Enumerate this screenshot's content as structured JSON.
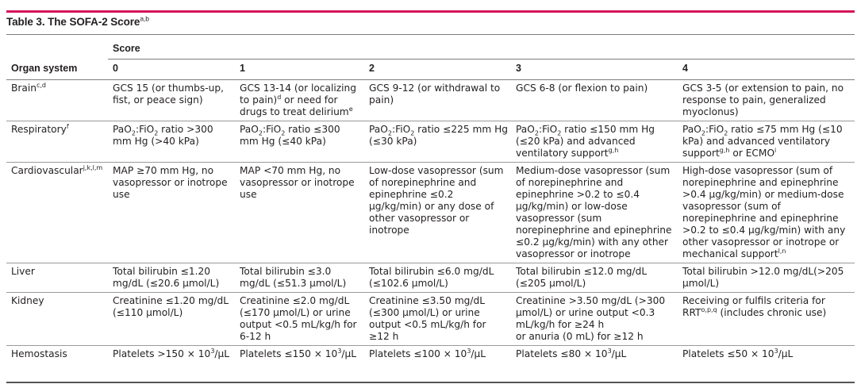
{
  "table": {
    "title": "Table 3. The SOFA-2 Score",
    "title_superscript": "a,b",
    "score_header": "Score",
    "organ_header": "Organ system",
    "score_columns": [
      "0",
      "1",
      "2",
      "3",
      "4"
    ],
    "rows": [
      {
        "organ": "Brain",
        "organ_sup": "c,d",
        "cells": [
          "GCS 15 (or thumbs-up, fist, or peace sign)",
          "GCS 13-14 (or localizing to pain)|d| or need for drugs to treat delirium|e|",
          "GCS 9-12 (or withdrawal to pain)",
          "GCS 6-8 (or flexion to pain)",
          "GCS 3-5 (or extension to pain, no response to pain, generalized myoclonus)"
        ]
      },
      {
        "organ": "Respiratory",
        "organ_sup": "f",
        "cells": [
          "PaO~2~:FiO~2~ ratio >300 mm Hg (>40 kPa)",
          "PaO~2~:FiO~2~ ratio ≤300 mm Hg (≤40 kPa)",
          "PaO~2~:FiO~2~ ratio ≤225 mm Hg (≤30 kPa)",
          "PaO~2~:FiO~2~ ratio ≤150 mm Hg (≤20 kPa) and advanced ventilatory support|g,h|",
          "PaO~2~:FiO~2~ ratio ≤75 mm Hg (≤10 kPa) and advanced ventilatory support|g,h| or ECMO|i|"
        ]
      },
      {
        "organ": "Cardiovascular",
        "organ_sup": "j,k,l,m",
        "cells": [
          "MAP ≥70 mm Hg, no vasopressor or inotrope use",
          "MAP <70 mm Hg, no vasopressor or inotrope use",
          "Low-dose vasopressor (sum of norepinephrine and epinephrine ≤0.2 μg/kg/min) or any dose of other vasopressor or inotrope",
          "Medium-dose vasopressor (sum of norepinephrine and epinephrine >0.2 to ≤0.4 μg/kg/min) or low-dose vasopressor (sum norepinephrine and epinephrine ≤0.2 μg/kg/min) with any other vasopressor or inotrope",
          "High-dose vasopressor (sum of norepinephrine and epinephrine >0.4 μg/kg/min) or medium-dose vasopressor (sum of norepinephrine and epinephrine >0.2 to ≤0.4 μg/kg/min) with any other vasopressor or inotrope or mechanical support|l,n|"
        ]
      },
      {
        "organ": "Liver",
        "organ_sup": "",
        "cells": [
          "Total bilirubin ≤1.20 mg/dL (≤20.6 μmol/L)",
          "Total bilirubin ≤3.0 mg/dL (≤51.3 μmol/L)",
          "Total bilirubin ≤6.0 mg/dL (≤102.6 μmol/L)",
          "Total bilirubin ≤12.0 mg/dL (≤205 μmol/L)",
          "Total bilirubin >12.0 mg/dL(>205 μmol/L)"
        ]
      },
      {
        "organ": "Kidney",
        "organ_sup": "",
        "cells": [
          "Creatinine ≤1.20 mg/dL (≤110 μmol/L)",
          "Creatinine ≤2.0 mg/dL (≤170 μmol/L) or urine output <0.5 mL/kg/h for 6-12 h",
          "Creatinine ≤3.50 mg/dL (≤300 μmol/L) or urine output <0.5 mL/kg/h for ≥12 h",
          "Creatinine >3.50 mg/dL (>300 μmol/L) or urine output <0.3 mL/kg/h for ≥24 h\nor anuria (0 mL) for ≥12 h",
          "Receiving or fulfils criteria for RRT|o,p,q| (includes chronic use)"
        ]
      },
      {
        "organ": "Hemostasis",
        "organ_sup": "",
        "cells": [
          "Platelets >150 × 10|3|/μL",
          "Platelets ≤150 × 10|3|/μL",
          "Platelets ≤100 × 10|3|/μL",
          "Platelets ≤80 × 10|3|/μL",
          "Platelets ≤50 × 10|3|/μL"
        ]
      }
    ],
    "colors": {
      "accent_rule": "#d4145a",
      "text": "#231f20",
      "divider": "#9a9a9a"
    }
  }
}
